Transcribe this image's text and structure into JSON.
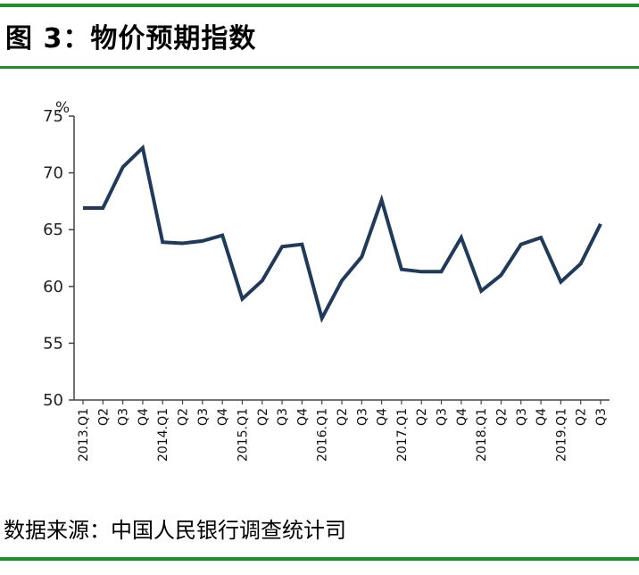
{
  "header": {
    "title": "图 3：物价预期指数"
  },
  "footer": {
    "source": "数据来源：中国人民银行调查统计司"
  },
  "colors": {
    "rule": "#1f8f2e",
    "series": "#1f3a5a",
    "axis": "#444444"
  },
  "chart_data": {
    "type": "line",
    "title": "",
    "xlabel": "",
    "ylabel": "%",
    "ylim": [
      50,
      75
    ],
    "yticks": [
      50,
      55,
      60,
      65,
      70,
      75
    ],
    "grid": false,
    "categories": [
      "2013.Q1",
      "Q2",
      "Q3",
      "Q4",
      "2014.Q1",
      "Q2",
      "Q3",
      "Q4",
      "2015.Q1",
      "Q2",
      "Q3",
      "Q4",
      "2016.Q1",
      "Q2",
      "Q3",
      "Q4",
      "2017.Q1",
      "Q2",
      "Q3",
      "Q4",
      "2018.Q1",
      "Q2",
      "Q3",
      "Q4",
      "2019.Q1",
      "Q2",
      "Q3"
    ],
    "values": [
      66.9,
      66.9,
      70.5,
      72.2,
      63.9,
      63.8,
      64.0,
      64.5,
      58.9,
      60.5,
      63.5,
      63.7,
      57.2,
      60.5,
      62.6,
      67.6,
      61.5,
      61.3,
      61.3,
      64.3,
      59.6,
      61.0,
      63.7,
      64.3,
      60.4,
      62.0,
      65.5
    ]
  }
}
